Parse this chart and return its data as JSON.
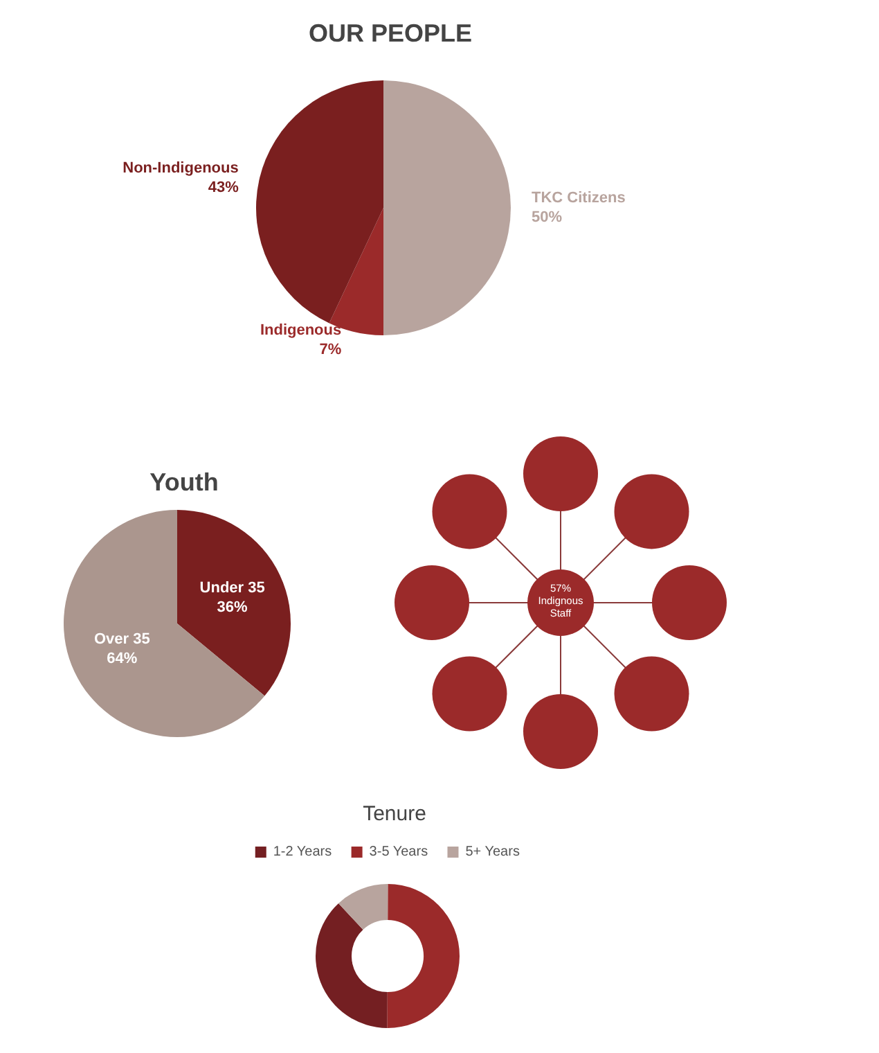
{
  "chart_data": [
    {
      "type": "pie",
      "title": "OUR PEOPLE",
      "categories": [
        "TKC Citizens",
        "Indigenous",
        "Non-Indigenous"
      ],
      "values": [
        50,
        7,
        43
      ],
      "colors": [
        "#b8a49e",
        "#9b2a2a",
        "#7a1f1f"
      ],
      "value_labels": [
        "50%",
        "7%",
        "43%"
      ],
      "legend": false
    },
    {
      "type": "pie",
      "title": "Youth",
      "categories": [
        "Under 35",
        "Over 35"
      ],
      "values": [
        36,
        64
      ],
      "colors": [
        "#7a1f1f",
        "#ab968e"
      ],
      "value_labels": [
        "36%",
        "64%"
      ],
      "legend": false
    },
    {
      "type": "other",
      "annotations": [
        "57% Indignous Staff"
      ]
    },
    {
      "type": "donut",
      "title": "Tenure",
      "categories": [
        "1-2 Years",
        "3-5 Years",
        "5+ Years"
      ],
      "values": [
        38,
        50,
        12
      ],
      "colors": [
        "#741f22",
        "#9b2a2a",
        "#b8a49e"
      ],
      "legend": "top"
    }
  ]
}
